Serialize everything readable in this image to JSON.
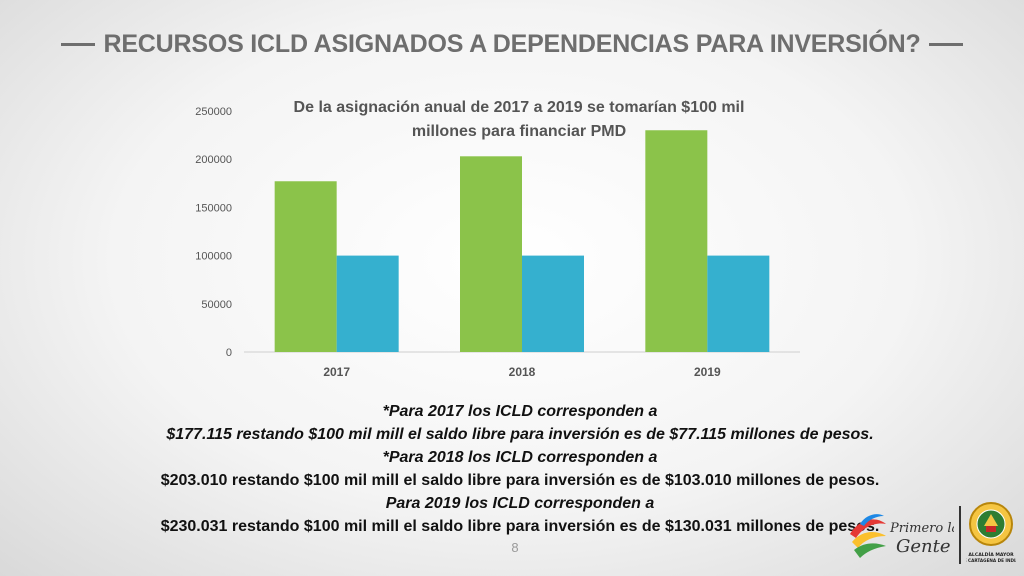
{
  "slide": {
    "title": "RECURSOS ICLD ASIGNADOS A DEPENDENCIAS PARA INVERSIÓN?",
    "page_number": "8"
  },
  "chart_data": {
    "type": "bar",
    "categories": [
      "2017",
      "2018",
      "2019"
    ],
    "series": [
      {
        "values": [
          177115,
          203010,
          230031
        ],
        "color": "#8bc34a"
      },
      {
        "values": [
          100000,
          100000,
          100000
        ],
        "color": "#35b0cf"
      }
    ],
    "ylim": [
      0,
      250000
    ],
    "yticks": [
      0,
      50000,
      100000,
      150000,
      200000,
      250000
    ],
    "annotation": [
      "De la asignación anual de 2017 a 2019 se tomarían $100 mil",
      "millones para financiar PMD"
    ],
    "grid": false
  },
  "notes": [
    {
      "text": "*Para 2017 los ICLD corresponden a",
      "italic": true
    },
    {
      "text": "$177.115 restando $100 mil mill el saldo libre para inversión es de $77.115 millones de pesos.",
      "italic": true
    },
    {
      "text": "*Para 2018 los ICLD corresponden a",
      "italic": true
    },
    {
      "text": "$203.010 restando $100 mil mill el saldo libre para inversión es de $103.010 millones de pesos.",
      "italic": false
    },
    {
      "text": "Para 2019 los ICLD corresponden a",
      "italic": true
    },
    {
      "text": "$230.031 restando $100 mil mill el saldo libre para inversión es de $130.031 millones de pesos.",
      "italic": false
    }
  ],
  "logos": {
    "primero": [
      "Primero la",
      "Gente"
    ],
    "seal": [
      "ALCALDÍA MAYOR",
      "DE CARTAGENA DE INDIAS"
    ]
  }
}
